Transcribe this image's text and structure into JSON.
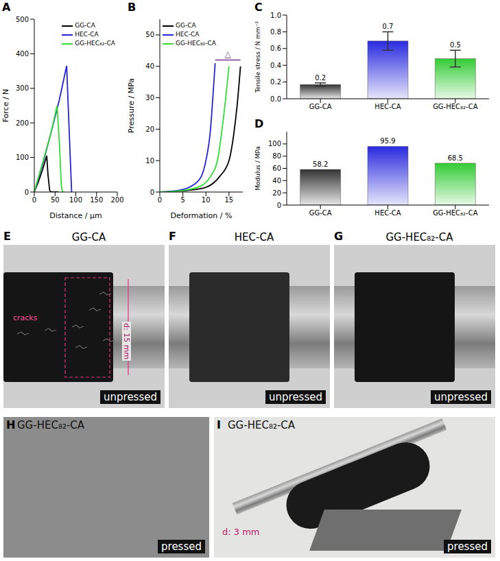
{
  "chart_data": [
    {
      "panel": "A",
      "type": "line",
      "x_label": "Distance / µm",
      "y_label": "Force / N",
      "xlim": [
        0,
        200
      ],
      "xticks": [
        0,
        50,
        100,
        150,
        200
      ],
      "ylim": [
        0,
        500
      ],
      "yticks": [
        0,
        100,
        200,
        300,
        400,
        500
      ],
      "legend": "upper right",
      "series": [
        {
          "name": "GG-CA",
          "color": "#000000",
          "x": [
            0,
            10,
            20,
            30,
            33,
            37,
            40,
            58
          ],
          "values": [
            0,
            30,
            65,
            105,
            50,
            5,
            0,
            0
          ]
        },
        {
          "name": "HEC-CA",
          "color": "#2323d8",
          "x": [
            0,
            20,
            40,
            60,
            78,
            84,
            90
          ],
          "values": [
            0,
            80,
            170,
            265,
            365,
            180,
            0
          ]
        },
        {
          "name": "GG-HEC₈₂-CA",
          "color": "#33dd33",
          "x": [
            0,
            20,
            40,
            55,
            61,
            65,
            68,
            72
          ],
          "values": [
            0,
            85,
            170,
            250,
            130,
            20,
            0,
            0
          ]
        }
      ]
    },
    {
      "panel": "B",
      "type": "line",
      "x_label": "Deformation / %",
      "y_label": "Pressure / MPa",
      "xlim": [
        0,
        18
      ],
      "xticks": [
        0,
        5,
        10,
        15
      ],
      "ylim": [
        0,
        55
      ],
      "yticks": [
        0,
        10,
        20,
        30,
        40,
        50
      ],
      "legend": "upper left",
      "annotation": {
        "text": "△",
        "x": [
          12,
          17.5
        ],
        "y": 42
      },
      "series": [
        {
          "name": "GG-CA",
          "color": "#000000",
          "x": [
            0,
            6,
            10,
            13,
            15,
            16,
            16.8,
            17.5
          ],
          "values": [
            0,
            0.5,
            1.5,
            5,
            10,
            18,
            28,
            40
          ]
        },
        {
          "name": "HEC-CA",
          "color": "#2323d8",
          "x": [
            0,
            4,
            7,
            9,
            10,
            11,
            11.5,
            12
          ],
          "values": [
            0,
            0.5,
            2,
            5,
            10,
            20,
            30,
            41
          ]
        },
        {
          "name": "GG-HEC₈₂-CA",
          "color": "#33dd33",
          "x": [
            0,
            5,
            9,
            11,
            12.5,
            13.5,
            14.3,
            15
          ],
          "values": [
            0,
            0.5,
            2,
            5,
            10,
            20,
            30,
            40
          ]
        }
      ]
    },
    {
      "panel": "C",
      "type": "bar",
      "y_label": "Tensile stress / N mm⁻²",
      "categories": [
        "GG-CA",
        "HEC-CA",
        "GG-HEC₈₂-CA"
      ],
      "values": [
        0.17,
        0.69,
        0.48
      ],
      "value_labels": [
        "0.2",
        "0.7",
        "0.5"
      ],
      "errors": [
        0.02,
        0.11,
        0.1
      ],
      "colors": [
        "#333333",
        "#2a2ae0",
        "#33cc33"
      ],
      "data_labels": true,
      "ylim": [
        0,
        1.0
      ],
      "yticks": [
        {
          "value": 0,
          "label": "0.0"
        },
        0.2,
        0.4,
        0.6,
        0.8,
        {
          "value": 1.0,
          "label": "1.0"
        }
      ]
    },
    {
      "panel": "D",
      "type": "bar",
      "y_label": "Modulus / MPa",
      "categories": [
        "GG-CA",
        "HEC-CA",
        "GG-HEC₈₂-CA"
      ],
      "values": [
        58.2,
        95.9,
        68.5
      ],
      "colors": [
        "#333333",
        "#2a2ae0",
        "#33cc33"
      ],
      "data_labels": true,
      "ylim": [
        0,
        120
      ],
      "yticks": [
        0,
        20,
        40,
        60,
        80,
        100
      ]
    }
  ],
  "photos": [
    {
      "panel": "E",
      "title": "GG-CA",
      "caption": "unpressed",
      "annotations": [
        "cracks",
        "d: 15 mm"
      ]
    },
    {
      "panel": "F",
      "title": "HEC-CA",
      "caption": "unpressed"
    },
    {
      "panel": "G",
      "title": "GG-HEC₈₂-CA",
      "caption": "unpressed"
    },
    {
      "panel": "H",
      "label": "GG-HEC₈₂-CA",
      "caption": "pressed"
    },
    {
      "panel": "I",
      "label": "GG-HEC₈₂-CA",
      "caption": "pressed",
      "annotations": [
        "d: 3 mm"
      ]
    }
  ]
}
